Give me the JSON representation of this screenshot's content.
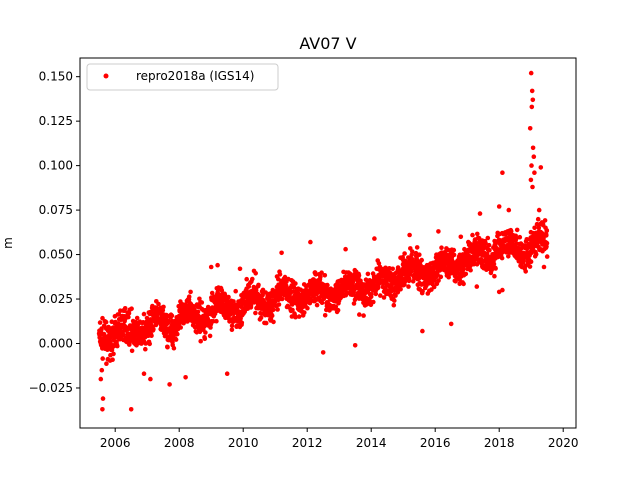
{
  "chart_data": {
    "type": "scatter",
    "title": "AV07 V",
    "xlabel": "",
    "ylabel": "m",
    "xlim": [
      2004.9,
      2020.4
    ],
    "ylim": [
      -0.0475,
      0.1605
    ],
    "x_ticks": [
      2006,
      2008,
      2010,
      2012,
      2014,
      2016,
      2018,
      2020
    ],
    "x_tick_labels": [
      "2006",
      "2008",
      "2010",
      "2012",
      "2014",
      "2016",
      "2018",
      "2020"
    ],
    "y_ticks": [
      -0.025,
      0.0,
      0.025,
      0.05,
      0.075,
      0.1,
      0.125,
      0.15
    ],
    "y_tick_labels": [
      "−0.025",
      "0.000",
      "0.025",
      "0.050",
      "0.075",
      "0.100",
      "0.125",
      "0.150"
    ],
    "grid": false,
    "legend_position": "upper-left",
    "marker_color": "#ff0000",
    "series": [
      {
        "name": "repro2018a (IGS14)",
        "trend": [
          [
            2005.5,
            0.004
          ],
          [
            2006.5,
            0.007
          ],
          [
            2008.0,
            0.013
          ],
          [
            2009.0,
            0.018
          ],
          [
            2010.0,
            0.022
          ],
          [
            2011.0,
            0.025
          ],
          [
            2012.0,
            0.028
          ],
          [
            2013.0,
            0.03
          ],
          [
            2014.0,
            0.032
          ],
          [
            2015.0,
            0.039
          ],
          [
            2016.0,
            0.041
          ],
          [
            2017.0,
            0.048
          ],
          [
            2018.0,
            0.053
          ],
          [
            2019.0,
            0.055
          ],
          [
            2019.5,
            0.056
          ]
        ],
        "values": [
          [
            2005.6,
            -0.037
          ],
          [
            2005.62,
            -0.031
          ],
          [
            2006.5,
            -0.037
          ],
          [
            2005.55,
            -0.02
          ],
          [
            2005.58,
            -0.015
          ],
          [
            2006.9,
            -0.017
          ],
          [
            2007.1,
            -0.02
          ],
          [
            2007.7,
            -0.023
          ],
          [
            2008.2,
            -0.019
          ],
          [
            2009.5,
            -0.017
          ],
          [
            2009.0,
            0.043
          ],
          [
            2009.2,
            0.044
          ],
          [
            2009.9,
            0.042
          ],
          [
            2011.2,
            0.051
          ],
          [
            2012.1,
            0.057
          ],
          [
            2013.2,
            0.053
          ],
          [
            2014.1,
            0.059
          ],
          [
            2015.2,
            0.061
          ],
          [
            2016.1,
            0.063
          ],
          [
            2016.8,
            0.06
          ],
          [
            2017.4,
            0.073
          ],
          [
            2018.0,
            0.077
          ],
          [
            2018.3,
            0.075
          ],
          [
            2018.1,
            0.096
          ],
          [
            2019.0,
            0.152
          ],
          [
            2019.03,
            0.142
          ],
          [
            2019.05,
            0.137
          ],
          [
            2019.02,
            0.133
          ],
          [
            2018.97,
            0.121
          ],
          [
            2019.06,
            0.11
          ],
          [
            2019.08,
            0.105
          ],
          [
            2019.01,
            0.1
          ],
          [
            2019.1,
            0.096
          ],
          [
            2018.99,
            0.092
          ],
          [
            2019.04,
            0.088
          ],
          [
            2019.3,
            0.099
          ],
          [
            2019.25,
            0.075
          ],
          [
            2012.5,
            -0.005
          ],
          [
            2013.5,
            -0.001
          ],
          [
            2015.6,
            0.007
          ],
          [
            2016.5,
            0.011
          ],
          [
            2018.0,
            0.029
          ],
          [
            2018.1,
            0.03
          ],
          [
            2017.3,
            0.032
          ],
          [
            2019.4,
            0.043
          ]
        ]
      }
    ]
  }
}
